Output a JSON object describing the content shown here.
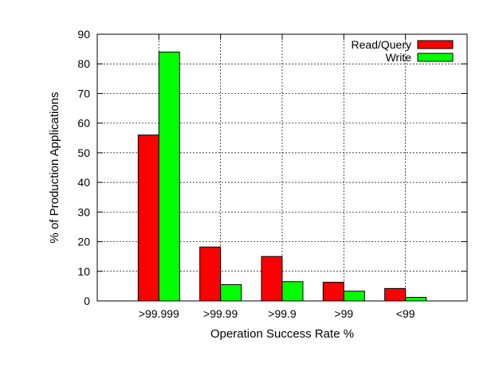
{
  "chart_data": {
    "type": "bar",
    "title": "",
    "xlabel": "Operation Success Rate %",
    "ylabel": "% of Production Applications",
    "categories": [
      ">99.999",
      ">99.99",
      ">99.9",
      ">99",
      "<99"
    ],
    "series": [
      {
        "name": "Read/Query",
        "color": "#ff0000",
        "values": [
          56,
          18.2,
          15,
          6.3,
          4.2
        ]
      },
      {
        "name": "Write",
        "color": "#00ff00",
        "values": [
          84,
          5.5,
          6.5,
          3.3,
          1.2
        ]
      }
    ],
    "ylim": [
      0,
      90
    ],
    "yticks": [
      0,
      10,
      20,
      30,
      40,
      50,
      60,
      70,
      80,
      90
    ],
    "grid": true,
    "legend_position": "top-right"
  }
}
